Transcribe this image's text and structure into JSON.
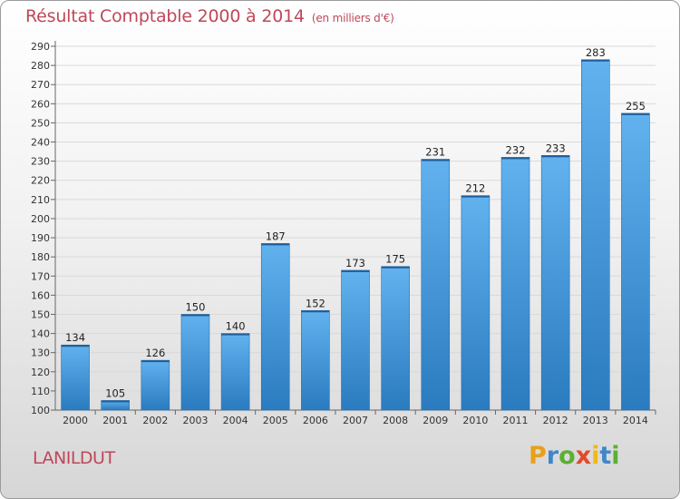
{
  "title": "Résultat Comptable 2000 à 2014",
  "unit_note": "(en milliers d'€)",
  "place": "LANILDUT",
  "logo": {
    "letters": [
      "P",
      "r",
      "o",
      "x",
      "i",
      "t",
      "i"
    ],
    "colors": [
      "#e8a01c",
      "#3f87c9",
      "#5bb031",
      "#e24a2a",
      "#f0b81a",
      "#3f87c9",
      "#5bb031"
    ]
  },
  "colors": {
    "bar_top": "#62b2ef",
    "bar_bottom": "#2a7bbf",
    "title": "#c0475a"
  },
  "chart_data": {
    "type": "bar",
    "categories": [
      "2000",
      "2001",
      "2002",
      "2003",
      "2004",
      "2005",
      "2006",
      "2007",
      "2008",
      "2009",
      "2010",
      "2011",
      "2012",
      "2013",
      "2014"
    ],
    "values": [
      134,
      105,
      126,
      150,
      140,
      187,
      152,
      173,
      175,
      231,
      212,
      232,
      233,
      283,
      255
    ],
    "ylim": [
      100,
      290
    ],
    "yticks": [
      100,
      110,
      120,
      130,
      140,
      150,
      160,
      170,
      180,
      190,
      200,
      210,
      220,
      230,
      240,
      250,
      260,
      270,
      280,
      290
    ],
    "grid": true
  }
}
